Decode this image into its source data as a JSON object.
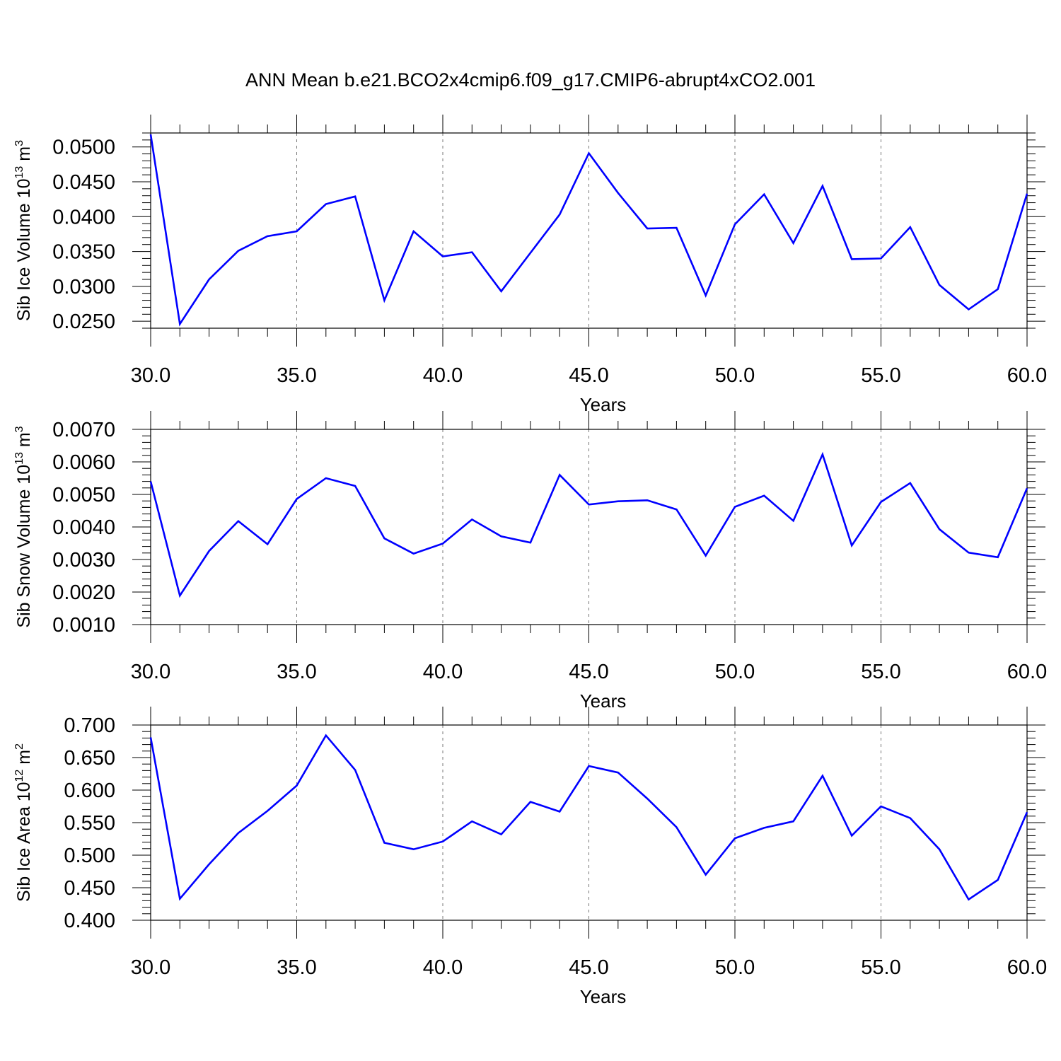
{
  "title": "ANN Mean b.e21.BCO2x4cmip6.f09_g17.CMIP6-abrupt4xCO2.001",
  "colors": {
    "line": "#0000ff",
    "axis": "#000000",
    "grid": "#777777"
  },
  "chart_data": [
    {
      "type": "line",
      "ylabel_main": "Sib Ice Volume 10",
      "ylabel_exp": "13",
      "ylabel_unit": " m",
      "ylabel_unit_exp": "3",
      "xlabel": "Years",
      "xlim": [
        30,
        60
      ],
      "ylim": [
        0.024,
        0.052
      ],
      "xticks": [
        "30.0",
        "35.0",
        "40.0",
        "45.0",
        "50.0",
        "55.0",
        "60.0"
      ],
      "yticks": [
        "0.0500",
        "0.0450",
        "0.0400",
        "0.0350",
        "0.0300",
        "0.0250"
      ],
      "grid": "vertical dashed at major x ticks",
      "x": [
        30,
        31,
        32,
        33,
        34,
        35,
        36,
        37,
        38,
        39,
        40,
        41,
        42,
        43,
        44,
        45,
        46,
        47,
        48,
        49,
        50,
        51,
        52,
        53,
        54,
        55,
        56,
        57,
        58,
        59,
        60
      ],
      "values": [
        0.0518,
        0.0246,
        0.031,
        0.0351,
        0.0372,
        0.0379,
        0.0418,
        0.0429,
        0.028,
        0.0379,
        0.0343,
        0.0349,
        0.0293,
        0.0348,
        0.0403,
        0.0491,
        0.0434,
        0.0383,
        0.0384,
        0.0287,
        0.0389,
        0.0432,
        0.0362,
        0.0444,
        0.0339,
        0.034,
        0.0385,
        0.0302,
        0.0267,
        0.0296,
        0.0433
      ]
    },
    {
      "type": "line",
      "ylabel_main": "Sib Snow Volume 10",
      "ylabel_exp": "13",
      "ylabel_unit": " m",
      "ylabel_unit_exp": "3",
      "xlabel": "Years",
      "xlim": [
        30,
        60
      ],
      "ylim": [
        0.001,
        0.007
      ],
      "xticks": [
        "30.0",
        "35.0",
        "40.0",
        "45.0",
        "50.0",
        "55.0",
        "60.0"
      ],
      "yticks": [
        "0.0070",
        "0.0060",
        "0.0050",
        "0.0040",
        "0.0030",
        "0.0020",
        "0.0010"
      ],
      "grid": "vertical dashed at major x ticks",
      "x": [
        30,
        31,
        32,
        33,
        34,
        35,
        36,
        37,
        38,
        39,
        40,
        41,
        42,
        43,
        44,
        45,
        46,
        47,
        48,
        49,
        50,
        51,
        52,
        53,
        54,
        55,
        56,
        57,
        58,
        59,
        60
      ],
      "values": [
        0.0054,
        0.00189,
        0.00326,
        0.00418,
        0.00347,
        0.00486,
        0.0055,
        0.00526,
        0.00365,
        0.00318,
        0.00349,
        0.00423,
        0.00371,
        0.00352,
        0.0056,
        0.00469,
        0.00479,
        0.00482,
        0.00454,
        0.00312,
        0.00462,
        0.00496,
        0.00419,
        0.00623,
        0.00343,
        0.00477,
        0.00535,
        0.00393,
        0.00321,
        0.00307,
        0.00519
      ]
    },
    {
      "type": "line",
      "ylabel_main": "Sib Ice Area 10",
      "ylabel_exp": "12",
      "ylabel_unit": " m",
      "ylabel_unit_exp": "2",
      "xlabel": "Years",
      "xlim": [
        30,
        60
      ],
      "ylim": [
        0.4,
        0.7
      ],
      "xticks": [
        "30.0",
        "35.0",
        "40.0",
        "45.0",
        "50.0",
        "55.0",
        "60.0"
      ],
      "yticks": [
        "0.700",
        "0.650",
        "0.600",
        "0.550",
        "0.500",
        "0.450",
        "0.400"
      ],
      "grid": "vertical dashed at major x ticks",
      "x": [
        30,
        31,
        32,
        33,
        34,
        35,
        36,
        37,
        38,
        39,
        40,
        41,
        42,
        43,
        44,
        45,
        46,
        47,
        48,
        49,
        50,
        51,
        52,
        53,
        54,
        55,
        56,
        57,
        58,
        59,
        60
      ],
      "values": [
        0.681,
        0.433,
        0.486,
        0.534,
        0.568,
        0.607,
        0.684,
        0.631,
        0.519,
        0.509,
        0.521,
        0.552,
        0.532,
        0.582,
        0.567,
        0.637,
        0.627,
        0.587,
        0.543,
        0.47,
        0.526,
        0.542,
        0.552,
        0.622,
        0.53,
        0.575,
        0.557,
        0.509,
        0.432,
        0.462,
        0.566
      ]
    }
  ]
}
